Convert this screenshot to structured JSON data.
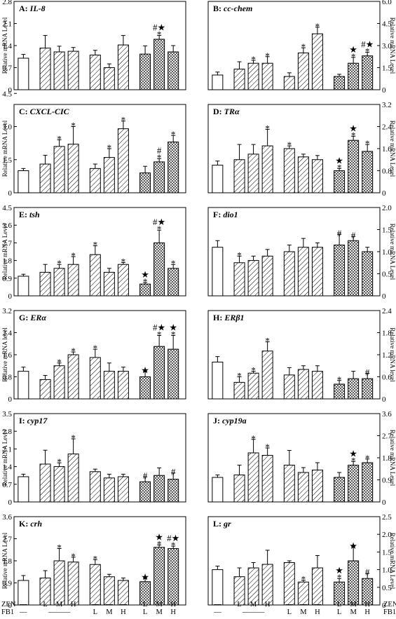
{
  "row_labels": [
    "ZEN",
    "FB1"
  ],
  "x_labels": {
    "ZEN": [
      "—",
      "L",
      "M",
      "H",
      "—",
      "—",
      "—",
      "L",
      "M",
      "H"
    ],
    "FB1": [
      "—",
      "———",
      "L",
      "M",
      "H",
      "L",
      "M",
      "H"
    ]
  },
  "chart_data": [
    {
      "type": "bar",
      "panel": "A",
      "gene": "IL-8",
      "ylabel": "Relative mRNA Level",
      "ylim": [
        0,
        2.8
      ],
      "yticks": [
        "0",
        "0.7",
        "1.4",
        "2.1",
        "2.8"
      ],
      "values": [
        1.0,
        1.32,
        1.2,
        1.22,
        1.1,
        0.7,
        1.42,
        1.13,
        1.6,
        1.2
      ],
      "errors": [
        0.12,
        0.4,
        0.18,
        0.12,
        0.15,
        0.12,
        0.3,
        0.26,
        0.12,
        0.2
      ],
      "marks": [
        "",
        "",
        "",
        "",
        "",
        "",
        "",
        "",
        "#★ *",
        ""
      ]
    },
    {
      "type": "bar",
      "panel": "B",
      "gene": "cc-chem",
      "ylabel": "Relative mRNA Level",
      "ylim": [
        0,
        6.0
      ],
      "yticks": [
        "0",
        "1.5",
        "3.0",
        "4.5",
        "6.0"
      ],
      "values": [
        1.0,
        1.4,
        1.8,
        1.8,
        0.9,
        2.5,
        3.8,
        0.9,
        1.8,
        2.3
      ],
      "errors": [
        0.2,
        0.5,
        0.2,
        0.45,
        0.25,
        0.35,
        0.45,
        0.15,
        0.4,
        0.25
      ],
      "marks": [
        "",
        "",
        "*",
        "*",
        "",
        "*",
        "*",
        "",
        "★ *",
        "#★ *"
      ]
    },
    {
      "type": "bar",
      "panel": "C",
      "gene": "CXCL-CIC",
      "ylabel": "Relative mRNA Level",
      "ylim": [
        0,
        4.0
      ],
      "yticks": [
        "0",
        "1.5",
        "3.0",
        "4.5"
      ],
      "values": [
        1.0,
        1.3,
        2.1,
        2.2,
        1.1,
        1.6,
        2.9,
        0.9,
        1.4,
        2.3
      ],
      "errors": [
        0.1,
        0.4,
        0.3,
        0.8,
        0.2,
        0.4,
        0.35,
        0.3,
        0.15,
        0.3
      ],
      "marks": [
        "",
        "",
        "*",
        "*",
        "",
        "*",
        "*",
        "",
        "# *",
        "*"
      ]
    },
    {
      "type": "bar",
      "panel": "D",
      "gene": "TRα",
      "ylabel": "Relative mRNA Level",
      "ylim": [
        0,
        3.2
      ],
      "yticks": [
        "0",
        "0.8",
        "1.6",
        "2.4",
        "3.2"
      ],
      "values": [
        1.0,
        1.2,
        1.4,
        1.7,
        1.6,
        1.3,
        1.2,
        0.8,
        1.9,
        1.5
      ],
      "errors": [
        0.15,
        0.55,
        0.35,
        0.6,
        0.1,
        0.1,
        0.15,
        0.08,
        0.15,
        0.25
      ],
      "marks": [
        "",
        "",
        "",
        "*",
        "*",
        "",
        "",
        "★ *",
        "★ *",
        "*"
      ]
    },
    {
      "type": "bar",
      "panel": "E",
      "gene": "tsh",
      "ylabel": "Relative mRNA Level",
      "ylim": [
        0,
        4.5
      ],
      "yticks": [
        "0",
        "0.9",
        "1.8",
        "2.7",
        "3.6",
        "4.5"
      ],
      "values": [
        1.0,
        1.2,
        1.4,
        1.6,
        2.1,
        1.2,
        1.6,
        0.6,
        2.7,
        1.4
      ],
      "errors": [
        0.1,
        0.4,
        0.2,
        0.4,
        0.45,
        0.2,
        0.1,
        0.08,
        0.65,
        0.2
      ],
      "marks": [
        "",
        "",
        "*",
        "*",
        "*",
        "",
        "*",
        "★ *",
        "#★ *",
        "*"
      ]
    },
    {
      "type": "bar",
      "panel": "F",
      "gene": "dio1",
      "ylabel": "Relative mRNA Level",
      "ylim": [
        0,
        2.0
      ],
      "yticks": [
        "0",
        "0.5",
        "1.0",
        "1.5",
        "2.0"
      ],
      "values": [
        1.1,
        0.75,
        0.8,
        0.9,
        1.0,
        1.1,
        1.1,
        1.15,
        1.25,
        1.0
      ],
      "errors": [
        0.15,
        0.15,
        0.1,
        0.15,
        0.15,
        0.2,
        0.1,
        0.25,
        0.1,
        0.1
      ],
      "marks": [
        "",
        "*",
        "",
        "",
        "",
        "",
        "",
        "#",
        "#",
        ""
      ]
    },
    {
      "type": "bar",
      "panel": "G",
      "gene": "ERα",
      "ylabel": "Relative mRNA level",
      "ylim": [
        0,
        3.2
      ],
      "yticks": [
        "0",
        "0.8",
        "1.6",
        "2.4",
        "3.2"
      ],
      "values": [
        1.0,
        0.7,
        1.2,
        1.6,
        1.5,
        1.0,
        1.0,
        0.8,
        1.9,
        1.8
      ],
      "errors": [
        0.15,
        0.15,
        0.1,
        0.1,
        0.3,
        0.3,
        0.15,
        0.2,
        0.4,
        0.5
      ],
      "marks": [
        "",
        "",
        "*",
        "*",
        "*",
        "",
        "",
        "★",
        "#★ *",
        "★ *"
      ]
    },
    {
      "type": "bar",
      "panel": "H",
      "gene": "ERβ1",
      "ylabel": "Relative mRNA level",
      "ylim": [
        0,
        2.4
      ],
      "yticks": [
        "0",
        "0.6",
        "1.2",
        "1.8",
        "2.4"
      ],
      "values": [
        1.0,
        0.45,
        0.7,
        1.3,
        0.65,
        0.8,
        0.75,
        0.4,
        0.55,
        0.55
      ],
      "errors": [
        0.15,
        0.15,
        0.05,
        0.25,
        0.2,
        0.1,
        0.15,
        0.1,
        0.2,
        0.15
      ],
      "marks": [
        "",
        "*",
        "*",
        "*",
        "",
        "",
        "",
        "*",
        "",
        "#"
      ]
    },
    {
      "type": "bar",
      "panel": "I",
      "gene": "cyp17",
      "ylabel": "Relative mRNA Level",
      "ylim": [
        0,
        3.5
      ],
      "yticks": [
        "0",
        "0.7",
        "1.4",
        "2.1",
        "2.8",
        "3.5"
      ],
      "values": [
        1.0,
        1.5,
        1.4,
        1.9,
        1.2,
        0.95,
        1.0,
        0.8,
        1.05,
        0.9
      ],
      "errors": [
        0.1,
        0.55,
        0.15,
        0.6,
        0.1,
        0.15,
        0.1,
        0.2,
        0.3,
        0.25
      ],
      "marks": [
        "",
        "",
        "*",
        "*",
        "",
        "",
        "",
        "#",
        "",
        "#"
      ]
    },
    {
      "type": "bar",
      "panel": "J",
      "gene": "cyp19a",
      "ylabel": "Relative mRNA Level",
      "ylim": [
        0,
        3.6
      ],
      "yticks": [
        "0",
        "0.9",
        "1.8",
        "2.7",
        "3.6"
      ],
      "values": [
        1.0,
        1.1,
        2.0,
        1.9,
        1.5,
        1.2,
        1.3,
        1.0,
        1.5,
        1.6
      ],
      "errors": [
        0.1,
        0.4,
        0.55,
        0.3,
        0.6,
        0.2,
        0.3,
        0.2,
        0.15,
        0.15
      ],
      "marks": [
        "",
        "",
        "*",
        "*",
        "",
        "",
        "",
        "",
        "★ *",
        "*"
      ]
    },
    {
      "type": "bar",
      "panel": "K",
      "gene": "crh",
      "ylabel": "Relative mRNA Level",
      "ylim": [
        0,
        3.6
      ],
      "yticks": [
        "0",
        "0.9",
        "1.8",
        "2.7",
        "3.6"
      ],
      "values": [
        1.0,
        1.1,
        1.8,
        1.75,
        1.65,
        1.15,
        1.0,
        0.95,
        2.35,
        2.3
      ],
      "errors": [
        0.2,
        0.3,
        0.5,
        0.2,
        0.2,
        0.1,
        0.1,
        0.15,
        0.1,
        0.1
      ],
      "marks": [
        "",
        "",
        "*",
        "*",
        "*",
        "",
        "",
        "★",
        "★ *",
        "#★ *"
      ]
    },
    {
      "type": "bar",
      "panel": "L",
      "gene": "gr",
      "ylabel": "Relative mRNA Level",
      "ylim": [
        0,
        2.5
      ],
      "yticks": [
        "0",
        "0.5",
        "1.0",
        "1.5",
        "2.0",
        "2.5"
      ],
      "values": [
        1.0,
        0.8,
        1.05,
        1.15,
        1.2,
        0.65,
        1.05,
        0.65,
        1.25,
        0.75
      ],
      "errors": [
        0.1,
        0.25,
        0.15,
        0.4,
        0.05,
        0.05,
        0.35,
        0.1,
        0.4,
        0.15
      ],
      "marks": [
        "",
        "",
        "",
        "",
        "",
        "*",
        "",
        "★ *",
        "★",
        "#"
      ]
    }
  ]
}
